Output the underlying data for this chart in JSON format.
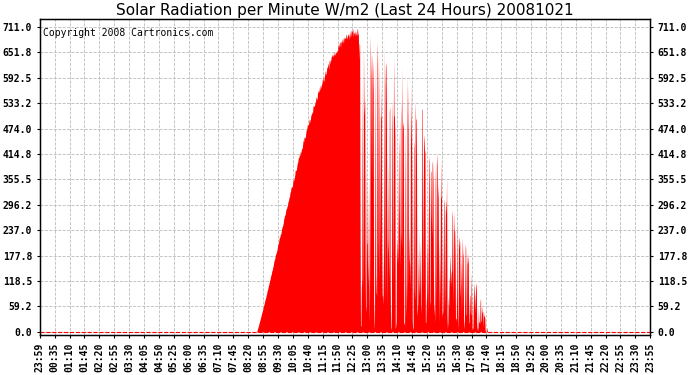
{
  "title": "Solar Radiation per Minute W/m2 (Last 24 Hours) 20081021",
  "copyright": "Copyright 2008 Cartronics.com",
  "y_ticks": [
    0.0,
    59.2,
    118.5,
    177.8,
    237.0,
    296.2,
    355.5,
    414.8,
    474.0,
    533.2,
    592.5,
    651.8,
    711.0
  ],
  "x_tick_labels": [
    "23:59",
    "00:35",
    "01:10",
    "01:45",
    "02:20",
    "02:55",
    "03:30",
    "04:05",
    "04:50",
    "05:25",
    "06:00",
    "06:35",
    "07:10",
    "07:45",
    "08:20",
    "08:55",
    "09:30",
    "10:05",
    "10:40",
    "11:15",
    "11:50",
    "12:25",
    "13:00",
    "13:35",
    "14:10",
    "14:45",
    "15:20",
    "15:55",
    "16:30",
    "17:05",
    "17:40",
    "18:15",
    "18:50",
    "19:25",
    "20:00",
    "20:35",
    "21:10",
    "21:45",
    "22:20",
    "22:55",
    "23:30",
    "23:55"
  ],
  "fill_color": "#FF0000",
  "dashed_line_color": "#FF0000",
  "grid_color": "#BBBBBB",
  "background_color": "#FFFFFF",
  "title_fontsize": 11,
  "copyright_fontsize": 7,
  "tick_fontsize": 7,
  "sunrise_minute": 510,
  "sunset_minute": 1055,
  "peak_minute": 750,
  "peak_value": 711.0,
  "n_points": 1440
}
